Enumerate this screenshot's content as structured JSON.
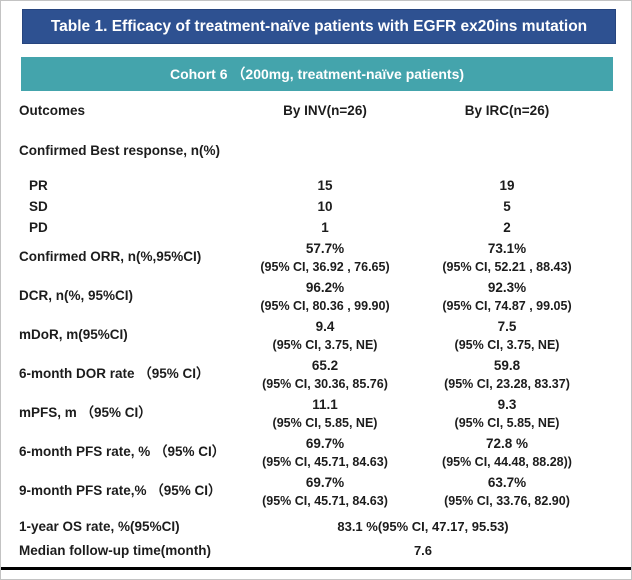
{
  "table_title": "Table 1. Efficacy of treatment-naïve patients with EGFR ex20ins mutation",
  "cohort_header": "Cohort 6 （200mg, treatment-naïve patients)",
  "columns": {
    "outcomes": "Outcomes",
    "inv": "By INV(n=26)",
    "irc": "By IRC(n=26)"
  },
  "section_header": "Confirmed Best response, n(%)",
  "rows": [
    {
      "label": "PR",
      "inv": "15",
      "irc": "19"
    },
    {
      "label": "SD",
      "inv": "10",
      "irc": "5"
    },
    {
      "label": "PD",
      "inv": "1",
      "irc": "2"
    },
    {
      "label": "Confirmed ORR, n(%,95%CI)",
      "inv": "57.7%",
      "inv_ci": "(95% CI, 36.92 , 76.65)",
      "irc": "73.1%",
      "irc_ci": "(95% CI, 52.21 , 88.43)"
    },
    {
      "label": "DCR, n(%, 95%CI)",
      "inv": "96.2%",
      "inv_ci": "(95% CI, 80.36 , 99.90)",
      "irc": "92.3%",
      "irc_ci": "(95% CI, 74.87 , 99.05)"
    },
    {
      "label": "mDoR, m(95%CI)",
      "inv": "9.4",
      "inv_ci": "(95% CI, 3.75, NE)",
      "irc": "7.5",
      "irc_ci": "(95% CI, 3.75, NE)"
    },
    {
      "label": "6-month DOR rate （95% CI）",
      "inv": "65.2",
      "inv_ci": "(95% CI, 30.36, 85.76)",
      "irc": "59.8",
      "irc_ci": "(95% CI, 23.28, 83.37)"
    },
    {
      "label": "mPFS, m （95% CI）",
      "inv": "11.1",
      "inv_ci": "(95% CI, 5.85, NE)",
      "irc": "9.3",
      "irc_ci": "(95% CI, 5.85, NE)"
    },
    {
      "label": "6-month PFS rate, % （95% CI）",
      "inv": "69.7%",
      "inv_ci": "(95% CI, 45.71, 84.63)",
      "irc": "72.8 %",
      "irc_ci": "(95% CI, 44.48, 88.28))"
    },
    {
      "label": "9-month PFS rate,% （95% CI）",
      "inv": "69.7%",
      "inv_ci": "(95% CI, 45.71, 84.63)",
      "irc": "63.7%",
      "irc_ci": "(95% CI, 33.76, 82.90)"
    },
    {
      "label": "1-year OS rate, %(95%CI)",
      "merged": "83.1 %(95% CI, 47.17, 95.53)"
    },
    {
      "label": "Median follow-up time(month)",
      "merged": "7.6"
    }
  ],
  "colors": {
    "title_bg": "#2e5191",
    "cohort_bg": "#44a4ac",
    "banner_text": "#ffffff",
    "body_text": "#1c1c1c",
    "bottom_rule": "#000000"
  }
}
